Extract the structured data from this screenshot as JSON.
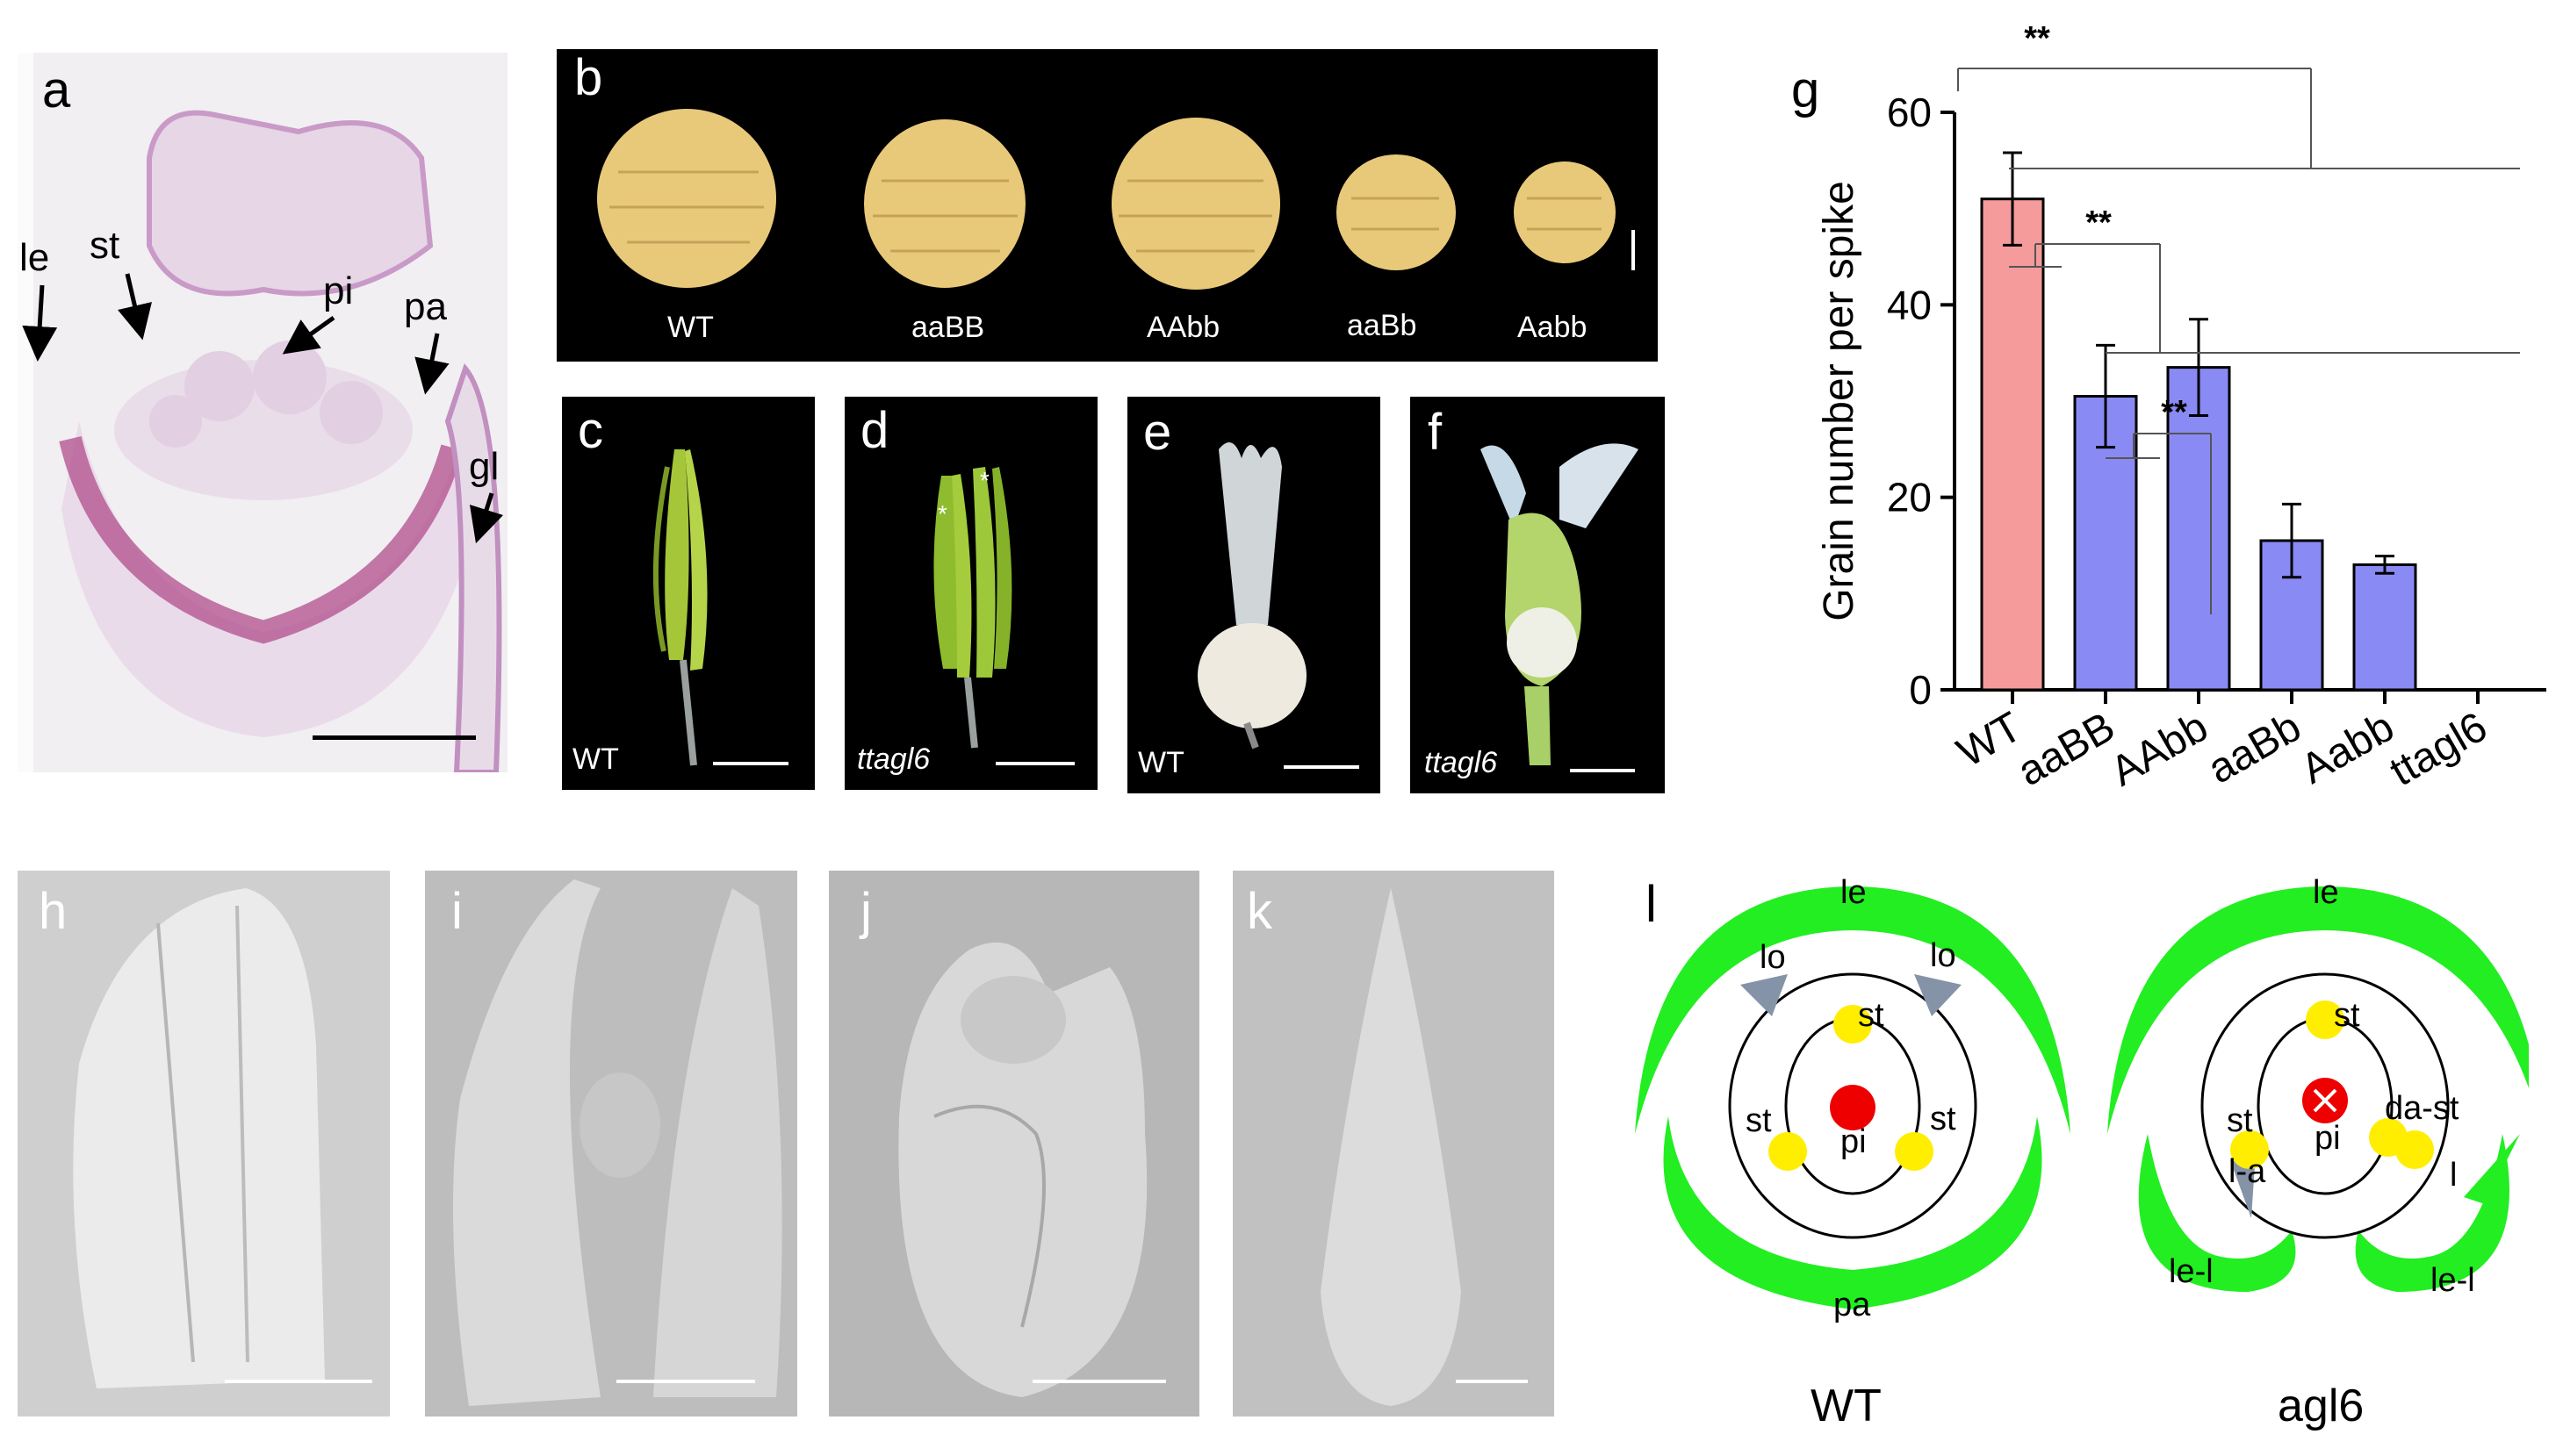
{
  "panels": {
    "a": {
      "label": "a",
      "annotations": [
        "le",
        "st",
        "pi",
        "pa",
        "gl"
      ]
    },
    "b": {
      "label": "b",
      "genotypes": [
        "WT",
        "aaBB",
        "AAbb",
        "aaBb",
        "Aabb"
      ]
    },
    "c": {
      "label": "c",
      "caption": "WT"
    },
    "d": {
      "label": "d",
      "caption": "ttagl6",
      "marks": [
        "*",
        "*"
      ]
    },
    "e": {
      "label": "e",
      "caption": "WT"
    },
    "f": {
      "label": "f",
      "caption": "ttagl6"
    },
    "g": {
      "label": "g"
    },
    "h": {
      "label": "h"
    },
    "i": {
      "label": "i"
    },
    "j": {
      "label": "j"
    },
    "k": {
      "label": "k"
    },
    "l": {
      "label": "l",
      "wt": {
        "title": "WT",
        "labels": [
          "le",
          "lo",
          "lo",
          "st",
          "st",
          "st",
          "pi",
          "pa"
        ]
      },
      "mut": {
        "title": "agl6",
        "labels": [
          "le",
          "st",
          "st",
          "pi",
          "da-st",
          "l-a",
          "l",
          "le-l",
          "le-l"
        ]
      }
    }
  },
  "colors": {
    "wt_bar": "#f59b9b",
    "mut_bar": "#8a8af5",
    "organ_green": "#22ee22",
    "stamen_yellow": "#ffee00",
    "pistil_red": "#ee0000",
    "lodicule_grey": "#8593a8"
  },
  "chart_data": {
    "type": "bar",
    "ylabel": "Grain number per spike",
    "ylim": [
      0,
      60
    ],
    "yticks": [
      0,
      20,
      40,
      60
    ],
    "categories": [
      "WT",
      "aaBB",
      "AAbb",
      "aaBb",
      "Aabb",
      "ttagl6"
    ],
    "values": [
      51,
      30.5,
      33.5,
      15.5,
      13,
      0
    ],
    "errors": [
      4.8,
      5.3,
      5.0,
      3.8,
      0.9,
      0
    ],
    "bar_colors": [
      "#f59b9b",
      "#8a8af5",
      "#8a8af5",
      "#8a8af5",
      "#8a8af5",
      "#8a8af5"
    ],
    "significance": [
      "**",
      "**",
      "**"
    ],
    "grid": false
  }
}
